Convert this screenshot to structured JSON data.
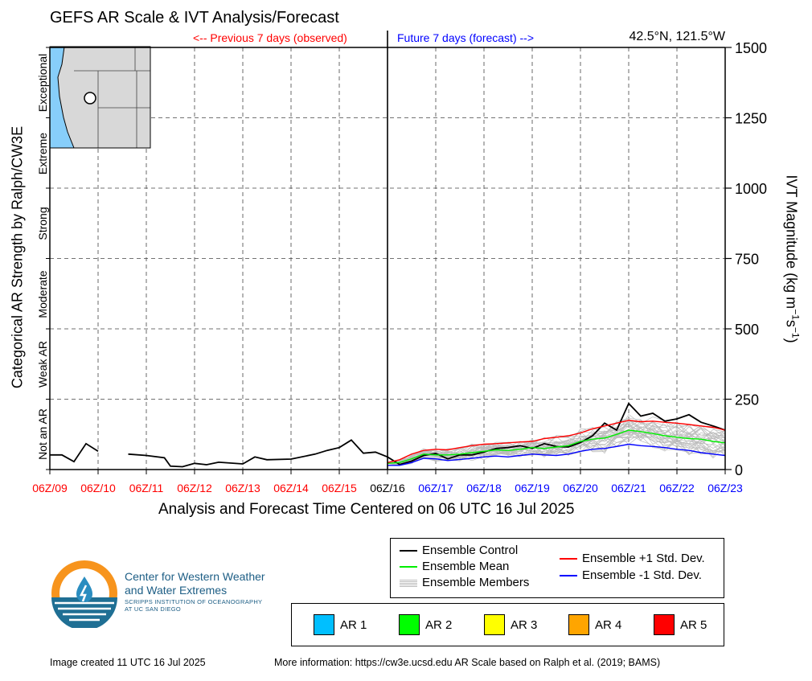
{
  "title": "GEFS AR Scale & IVT Analysis/Forecast",
  "location": "42.5°N, 121.5°W",
  "previous_label": "<-- Previous 7 days (observed)",
  "future_label": "Future 7 days (forecast) -->",
  "x_axis_title": "Analysis and Forecast Time Centered on 06 UTC 16 Jul 2025",
  "left_axis_title": "Categorical AR Strength by Ralph/CW3E",
  "right_axis_title": "IVT Magnitude (kg m",
  "right_axis_title_sup1": "−1",
  "right_axis_title_mid": "s",
  "right_axis_title_sup2": "−1",
  "right_axis_title_end": ")",
  "categories_left": [
    "Not an AR",
    "Weak AR",
    "Moderate",
    "Strong",
    "Extreme",
    "Exceptional"
  ],
  "legend": {
    "control": "Ensemble Control",
    "mean": "Ensemble Mean",
    "members": "Ensemble Members",
    "plus_sd": "Ensemble +1 Std. Dev.",
    "minus_sd": "Ensemble -1 Std. Dev."
  },
  "ar_scale": [
    {
      "label": "AR 1",
      "color": "#00bfff"
    },
    {
      "label": "AR 2",
      "color": "#00ff00"
    },
    {
      "label": "AR 3",
      "color": "#ffff00"
    },
    {
      "label": "AR 4",
      "color": "#ffa500"
    },
    {
      "label": "AR 5",
      "color": "#ff0000"
    }
  ],
  "org": {
    "name_line1": "Center for Western Weather",
    "name_line2": "and Water Extremes",
    "sub_line1": "SCRIPPS INSTITUTION OF OCEANOGRAPHY",
    "sub_line2": "AT UC SAN DIEGO"
  },
  "footer": {
    "created": "Image created 11 UTC 16 Jul 2025",
    "more_info": "More information: https://cw3e.ucsd.edu AR Scale based on Ralph et al. (2019; BAMS)"
  },
  "colors": {
    "control": "#000000",
    "mean": "#00ee00",
    "members": "#bbbbbb",
    "plus_sd": "#ff0000",
    "minus_sd": "#0000ff",
    "observed_ticks": "#ff0000",
    "forecast_ticks": "#0000ff",
    "ocean": "#87cefa"
  },
  "chart_data": {
    "type": "line",
    "ylabel": "IVT Magnitude (kg m−1s−1)",
    "ylim": [
      0,
      1500
    ],
    "yticks": [
      0,
      250,
      500,
      750,
      1000,
      1250,
      1500
    ],
    "xlim": [
      0,
      14
    ],
    "xticks": [
      {
        "x": 0,
        "label": "06Z/09",
        "kind": "observed"
      },
      {
        "x": 1,
        "label": "06Z/10",
        "kind": "observed"
      },
      {
        "x": 2,
        "label": "06Z/11",
        "kind": "observed"
      },
      {
        "x": 3,
        "label": "06Z/12",
        "kind": "observed"
      },
      {
        "x": 4,
        "label": "06Z/13",
        "kind": "observed"
      },
      {
        "x": 5,
        "label": "06Z/14",
        "kind": "observed"
      },
      {
        "x": 6,
        "label": "06Z/15",
        "kind": "observed"
      },
      {
        "x": 7,
        "label": "06Z/16",
        "kind": "analysis"
      },
      {
        "x": 8,
        "label": "06Z/17",
        "kind": "forecast"
      },
      {
        "x": 9,
        "label": "06Z/18",
        "kind": "forecast"
      },
      {
        "x": 10,
        "label": "06Z/19",
        "kind": "forecast"
      },
      {
        "x": 11,
        "label": "06Z/20",
        "kind": "forecast"
      },
      {
        "x": 12,
        "label": "06Z/21",
        "kind": "forecast"
      },
      {
        "x": 13,
        "label": "06Z/22",
        "kind": "forecast"
      },
      {
        "x": 14,
        "label": "06Z/23",
        "kind": "forecast"
      }
    ],
    "category_thresholds": [
      250,
      500,
      750,
      1000,
      1250
    ],
    "grid": true,
    "series": [
      {
        "name": "Ensemble Control",
        "key": "control",
        "segments": [
          [
            [
              0,
              52
            ],
            [
              0.25,
              52
            ],
            [
              0.5,
              28
            ],
            [
              0.75,
              92
            ],
            [
              1,
              65
            ]
          ],
          [
            [
              1.625,
              55
            ],
            [
              2,
              50
            ],
            [
              2.375,
              42
            ],
            [
              2.5,
              12
            ],
            [
              2.75,
              10
            ],
            [
              3,
              22
            ],
            [
              3.25,
              17
            ],
            [
              3.5,
              26
            ],
            [
              4,
              20
            ],
            [
              4.25,
              45
            ],
            [
              4.5,
              35
            ],
            [
              5,
              37
            ],
            [
              5.5,
              55
            ],
            [
              5.75,
              68
            ],
            [
              6,
              78
            ],
            [
              6.25,
              105
            ],
            [
              6.5,
              58
            ],
            [
              6.75,
              62
            ],
            [
              7,
              45
            ],
            [
              7.25,
              18
            ],
            [
              7.5,
              30
            ],
            [
              7.75,
              50
            ],
            [
              8,
              57
            ],
            [
              8.25,
              38
            ],
            [
              8.5,
              52
            ],
            [
              8.75,
              52
            ],
            [
              9,
              62
            ],
            [
              9.25,
              75
            ],
            [
              9.5,
              78
            ],
            [
              9.75,
              85
            ],
            [
              10,
              75
            ],
            [
              10.25,
              92
            ],
            [
              10.5,
              82
            ],
            [
              10.75,
              80
            ],
            [
              11,
              96
            ],
            [
              11.25,
              120
            ],
            [
              11.5,
              165
            ],
            [
              11.75,
              140
            ],
            [
              12,
              235
            ],
            [
              12.25,
              190
            ],
            [
              12.5,
              200
            ],
            [
              12.75,
              172
            ],
            [
              13,
              180
            ],
            [
              13.25,
              195
            ],
            [
              13.5,
              168
            ],
            [
              13.75,
              155
            ],
            [
              14,
              140
            ]
          ]
        ]
      },
      {
        "name": "Ensemble Mean",
        "key": "mean",
        "segments": [
          [
            [
              7,
              22
            ],
            [
              7.25,
              25
            ],
            [
              7.5,
              38
            ],
            [
              7.75,
              55
            ],
            [
              8,
              52
            ],
            [
              8.25,
              52
            ],
            [
              8.5,
              55
            ],
            [
              8.75,
              60
            ],
            [
              9,
              65
            ],
            [
              9.25,
              70
            ],
            [
              9.5,
              68
            ],
            [
              9.75,
              72
            ],
            [
              10,
              78
            ],
            [
              10.25,
              75
            ],
            [
              10.5,
              80
            ],
            [
              10.75,
              85
            ],
            [
              11,
              100
            ],
            [
              11.25,
              108
            ],
            [
              11.5,
              112
            ],
            [
              11.75,
              125
            ],
            [
              12,
              140
            ],
            [
              12.25,
              135
            ],
            [
              12.5,
              128
            ],
            [
              12.75,
              120
            ],
            [
              13,
              115
            ],
            [
              13.25,
              110
            ],
            [
              13.5,
              108
            ],
            [
              13.75,
              100
            ],
            [
              14,
              95
            ]
          ]
        ]
      },
      {
        "name": "Ensemble +1 Std. Dev.",
        "key": "plus_sd",
        "segments": [
          [
            [
              7,
              25
            ],
            [
              7.25,
              35
            ],
            [
              7.5,
              55
            ],
            [
              7.75,
              68
            ],
            [
              8,
              72
            ],
            [
              8.25,
              70
            ],
            [
              8.5,
              78
            ],
            [
              8.75,
              85
            ],
            [
              9,
              90
            ],
            [
              9.25,
              92
            ],
            [
              9.5,
              95
            ],
            [
              9.75,
              98
            ],
            [
              10,
              100
            ],
            [
              10.25,
              110
            ],
            [
              10.5,
              115
            ],
            [
              10.75,
              120
            ],
            [
              11,
              130
            ],
            [
              11.25,
              145
            ],
            [
              11.5,
              155
            ],
            [
              11.75,
              165
            ],
            [
              12,
              175
            ],
            [
              12.25,
              170
            ],
            [
              12.5,
              172
            ],
            [
              12.75,
              168
            ],
            [
              13,
              165
            ],
            [
              13.25,
              160
            ],
            [
              13.5,
              155
            ],
            [
              13.75,
              150
            ],
            [
              14,
              140
            ]
          ]
        ]
      },
      {
        "name": "Ensemble -1 Std. Dev.",
        "key": "minus_sd",
        "segments": [
          [
            [
              7,
              15
            ],
            [
              7.25,
              15
            ],
            [
              7.5,
              25
            ],
            [
              7.75,
              40
            ],
            [
              8,
              38
            ],
            [
              8.25,
              32
            ],
            [
              8.5,
              36
            ],
            [
              8.75,
              40
            ],
            [
              9,
              45
            ],
            [
              9.25,
              48
            ],
            [
              9.5,
              45
            ],
            [
              9.75,
              50
            ],
            [
              10,
              55
            ],
            [
              10.25,
              52
            ],
            [
              10.5,
              50
            ],
            [
              10.75,
              55
            ],
            [
              11,
              65
            ],
            [
              11.25,
              72
            ],
            [
              11.5,
              75
            ],
            [
              11.75,
              82
            ],
            [
              12,
              90
            ],
            [
              12.25,
              85
            ],
            [
              12.5,
              82
            ],
            [
              12.75,
              78
            ],
            [
              13,
              72
            ],
            [
              13.25,
              68
            ],
            [
              13.5,
              60
            ],
            [
              13.75,
              55
            ],
            [
              14,
              50
            ]
          ]
        ]
      }
    ]
  }
}
